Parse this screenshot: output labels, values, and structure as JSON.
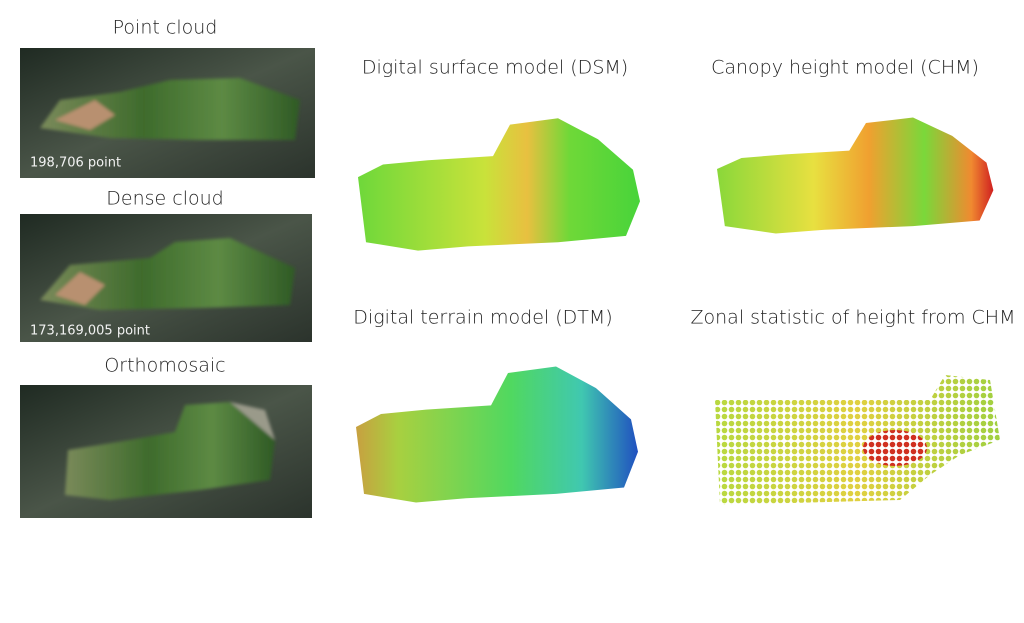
{
  "panels": [
    {
      "title": "Point cloud",
      "caption": "198,706 point"
    },
    {
      "title": "Dense cloud",
      "caption": "173,169,005 point"
    },
    {
      "title": "Orthomosaic"
    },
    {
      "title": "Digital surface model (DSM)"
    },
    {
      "title": "Canopy height model (CHM)"
    },
    {
      "title": "Digital terrain model (DTM)"
    },
    {
      "title": "Zonal statistic of height from CHM"
    }
  ]
}
